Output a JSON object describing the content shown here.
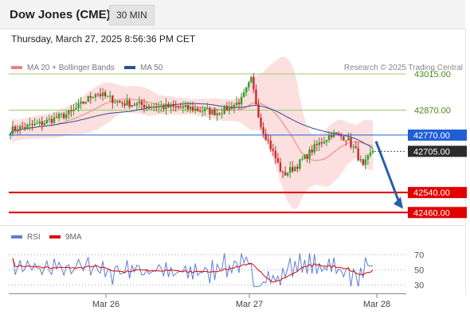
{
  "header": {
    "title": "Dow Jones (CME)",
    "timeframe": "30 MIN"
  },
  "datetime": "Thursday, March 27, 2025 8:56:36 PM CET",
  "legend": {
    "bollinger": {
      "label": "MA 20 + Bollinger Bands",
      "color": "#f08080"
    },
    "ma50": {
      "label": "MA 50",
      "color": "#2f4f8f"
    }
  },
  "copyright": "Research © 2025 Trading Central",
  "rsi_legend": {
    "rsi": {
      "label": "RSI",
      "color": "#5b7fd6"
    },
    "ma9": {
      "label": "9MA",
      "color": "#e00000"
    }
  },
  "chart_data": [
    {
      "type": "candlestick",
      "ylim": [
        42410,
        43120
      ],
      "x_labels": [
        "Mar 26",
        "Mar 27",
        "Mar 28"
      ],
      "levels": [
        {
          "price": 43015,
          "label": "43015.00",
          "style": "resistance"
        },
        {
          "price": 42870,
          "label": "42870.00",
          "style": "resistance"
        },
        {
          "price": 42770,
          "label": "42770.00",
          "style": "pivot"
        },
        {
          "price": 42705,
          "label": "42705.00",
          "style": "last"
        },
        {
          "price": 42540,
          "label": "42540.00",
          "style": "support"
        },
        {
          "price": 42460,
          "label": "42460.00",
          "style": "support"
        }
      ],
      "colors": {
        "up": "#2e9e2e",
        "down": "#c92a2a",
        "bands": "#fcd9d9",
        "pivot": "#1f5fd6",
        "support": "#e00000",
        "resistance": "#9acd6a",
        "arrow": "#2a5fa8"
      },
      "forecast_arrow": {
        "from": 42745,
        "to": 42475
      }
    },
    {
      "type": "line",
      "title": "RSI",
      "ylim": [
        20,
        80
      ],
      "ticks": [
        70,
        50,
        30
      ],
      "series_colors": {
        "rsi": "#5b7fd6",
        "ma": "#e00000"
      }
    }
  ]
}
